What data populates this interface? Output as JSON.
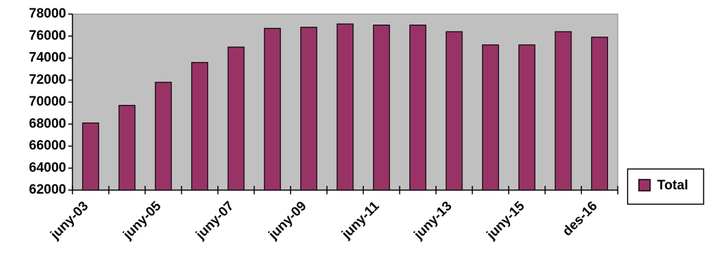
{
  "chart_data": {
    "type": "bar",
    "categories": [
      "juny-03",
      null,
      "juny-05",
      null,
      "juny-07",
      null,
      "juny-09",
      null,
      "juny-11",
      null,
      "juny-13",
      null,
      "juny-15",
      null,
      "des-16"
    ],
    "series": [
      {
        "name": "Total",
        "color": "#993366",
        "values": [
          68100,
          69700,
          71800,
          73600,
          75000,
          76700,
          76800,
          77100,
          77000,
          77000,
          76400,
          75200,
          75200,
          76400,
          75900
        ]
      }
    ],
    "ylim": [
      62000,
      78000
    ],
    "yticks": [
      62000,
      64000,
      66000,
      68000,
      70000,
      72000,
      74000,
      76000,
      78000
    ],
    "grid": false,
    "legend": "right",
    "plot_background": "#c0c0c0"
  }
}
